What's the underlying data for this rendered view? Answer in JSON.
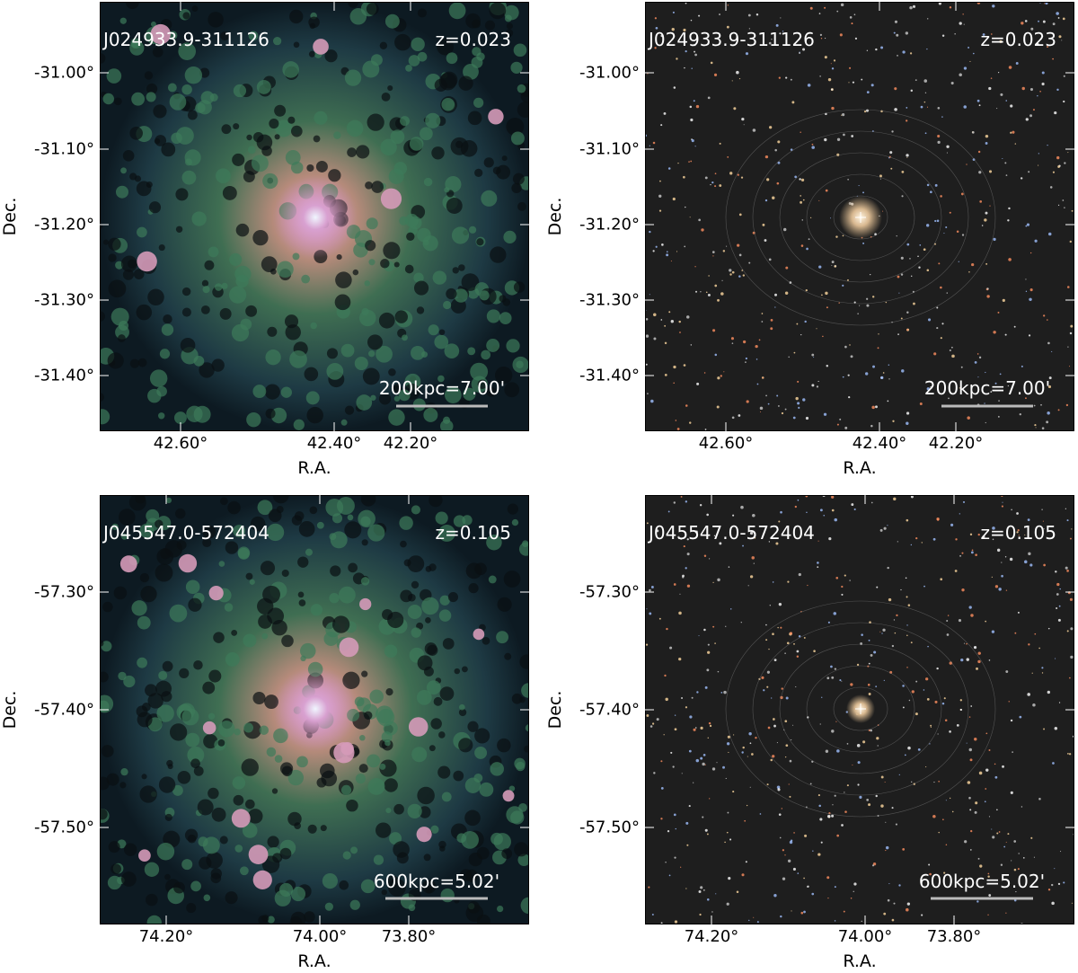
{
  "panels": [
    {
      "name": "J024933.9-311126",
      "redshift": "z=0.023",
      "scale": "200kpc=7.00'",
      "xlabel": "R.A.",
      "ylabel": "Dec.",
      "xticks": [
        "42.60°",
        "42.40°",
        "42.20°"
      ],
      "yticks": [
        "-31.00°",
        "-31.10°",
        "-31.20°",
        "-31.30°",
        "-31.40°"
      ]
    },
    {
      "name": "J024933.9-311126",
      "redshift": "z=0.023",
      "scale": "200kpc=7.00'",
      "xlabel": "R.A.",
      "ylabel": "Dec.",
      "xticks": [
        "42.60°",
        "42.40°",
        "42.20°"
      ],
      "yticks": [
        "-31.00°",
        "-31.10°",
        "-31.20°",
        "-31.30°",
        "-31.40°"
      ]
    },
    {
      "name": "J045547.0-572404",
      "redshift": "z=0.105",
      "scale": "600kpc=5.02'",
      "xlabel": "R.A.",
      "ylabel": "Dec.",
      "xticks": [
        "74.20°",
        "74.00°",
        "73.80°"
      ],
      "yticks": [
        "-57.30°",
        "-57.40°",
        "-57.50°"
      ]
    },
    {
      "name": "J045547.0-572404",
      "redshift": "z=0.105",
      "scale": "600kpc=5.02'",
      "xlabel": "R.A.",
      "ylabel": "Dec.",
      "xticks": [
        "74.20°",
        "74.00°",
        "73.80°"
      ],
      "yticks": [
        "-57.30°",
        "-57.40°",
        "-57.50°"
      ]
    }
  ]
}
